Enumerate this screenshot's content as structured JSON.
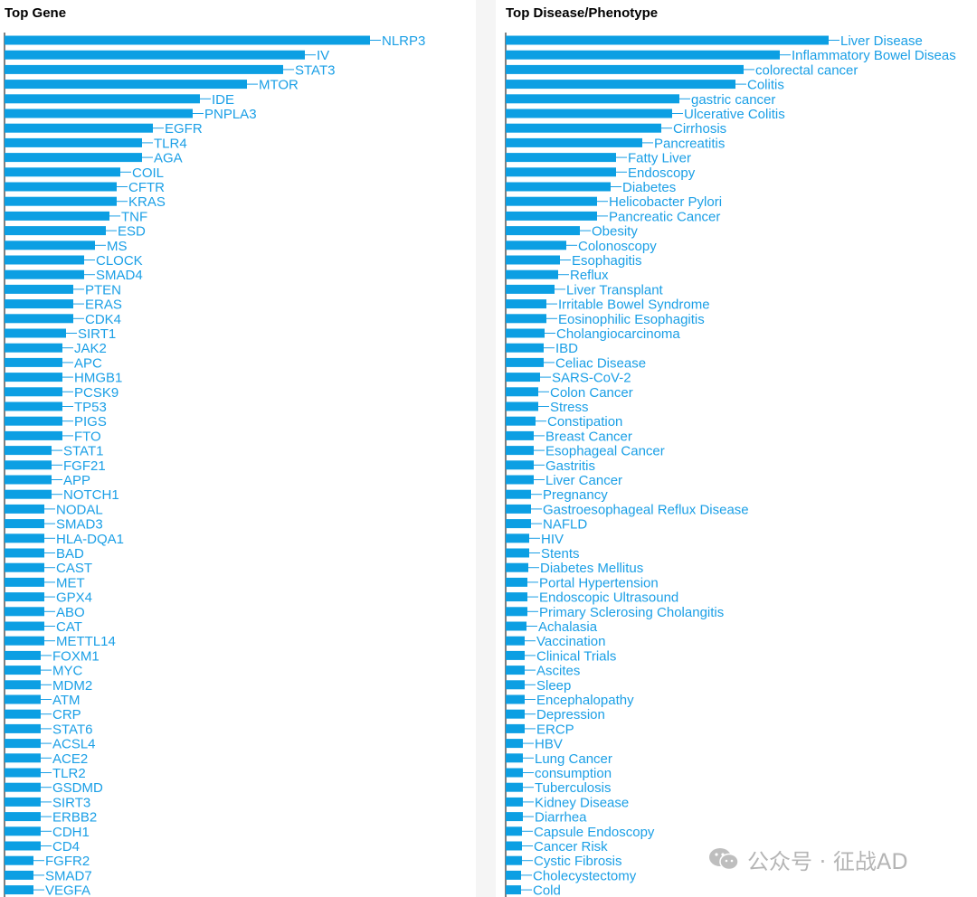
{
  "colors": {
    "bar": "#0c9fe3",
    "label": "#1a9fe6",
    "axis": "#000000"
  },
  "chart_data": [
    {
      "type": "bar",
      "orientation": "horizontal",
      "title": "Top Gene",
      "categories": [
        "NLRP3",
        "IV",
        "STAT3",
        "MTOR",
        "IDE",
        "PNPLA3",
        "EGFR",
        "TLR4",
        "AGA",
        "COIL",
        "CFTR",
        "KRAS",
        "TNF",
        "ESD",
        "MS",
        "CLOCK",
        "SMAD4",
        "PTEN",
        "ERAS",
        "CDK4",
        "SIRT1",
        "JAK2",
        "APC",
        "HMGB1",
        "PCSK9",
        "TP53",
        "PIGS",
        "FTO",
        "STAT1",
        "FGF21",
        "APP",
        "NOTCH1",
        "NODAL",
        "SMAD3",
        "HLA-DQA1",
        "BAD",
        "CAST",
        "MET",
        "GPX4",
        "ABO",
        "CAT",
        "METTL14",
        "FOXM1",
        "MYC",
        "MDM2",
        "ATM",
        "CRP",
        "STAT6",
        "ACSL4",
        "ACE2",
        "TLR2",
        "GSDMD",
        "SIRT3",
        "ERBB2",
        "CDH1",
        "CD4",
        "FGFR2",
        "SMAD7",
        "VEGFA"
      ],
      "values": [
        101,
        83,
        77,
        67,
        54,
        52,
        41,
        38,
        38,
        32,
        31,
        31,
        29,
        28,
        25,
        22,
        22,
        19,
        19,
        19,
        17,
        16,
        16,
        16,
        16,
        16,
        16,
        16,
        13,
        13,
        13,
        13,
        11,
        11,
        11,
        11,
        11,
        11,
        11,
        11,
        11,
        11,
        10,
        10,
        10,
        10,
        10,
        10,
        10,
        10,
        10,
        10,
        10,
        10,
        10,
        10,
        8,
        8,
        8
      ],
      "xlim": [
        0,
        101
      ]
    },
    {
      "type": "bar",
      "orientation": "horizontal",
      "title": "Top Disease/Phenotype",
      "categories": [
        "Liver Disease",
        "Inflammatory Bowel Diseas",
        "colorectal cancer",
        "Colitis",
        "gastric cancer",
        "Ulcerative Colitis",
        "Cirrhosis",
        "Pancreatitis",
        "Fatty Liver",
        "Endoscopy",
        "Diabetes",
        "Helicobacter Pylori",
        "Pancreatic Cancer",
        "Obesity",
        "Colonoscopy",
        "Esophagitis",
        "Reflux",
        "Liver Transplant",
        "Irritable Bowel Syndrome",
        "Eosinophilic Esophagitis",
        "Cholangiocarcinoma",
        "IBD",
        "Celiac Disease",
        "SARS-CoV-2",
        "Colon Cancer",
        "Stress",
        "Constipation",
        "Breast Cancer",
        "Esophageal Cancer",
        "Gastritis",
        "Liver Cancer",
        "Pregnancy",
        "Gastroesophageal Reflux Disease",
        "NAFLD",
        "HIV",
        "Stents",
        "Diabetes Mellitus",
        "Portal Hypertension",
        "Endoscopic Ultrasound",
        "Primary Sclerosing Cholangitis",
        "Achalasia",
        "Vaccination",
        "Clinical Trials",
        "Ascites",
        "Sleep",
        "Encephalopathy",
        "Depression",
        "ERCP",
        "HBV",
        "Lung Cancer",
        "consumption",
        "Tuberculosis",
        "Kidney Disease",
        "Diarrhea",
        "Capsule Endoscopy",
        "Cancer Risk",
        "Cystic Fibrosis",
        "Cholecystectomy",
        "Cold"
      ],
      "values": [
        357,
        303,
        263,
        254,
        192,
        184,
        172,
        151,
        122,
        122,
        116,
        101,
        101,
        82,
        67,
        60,
        58,
        54,
        45,
        45,
        43,
        42,
        42,
        38,
        36,
        36,
        33,
        31,
        31,
        31,
        31,
        28,
        28,
        28,
        26,
        26,
        25,
        24,
        24,
        24,
        23,
        21,
        21,
        21,
        21,
        21,
        21,
        21,
        19,
        19,
        19,
        19,
        19,
        19,
        18,
        18,
        18,
        17,
        17
      ],
      "xlim": [
        0,
        357
      ]
    }
  ],
  "watermark": {
    "text": "公众号 · 征战AD"
  }
}
